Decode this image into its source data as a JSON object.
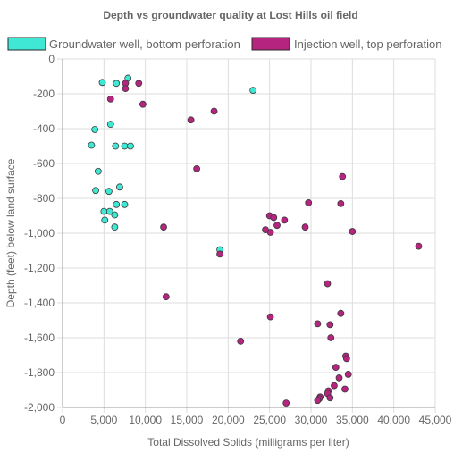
{
  "chart_data": {
    "type": "scatter",
    "title": "Depth vs groundwater quality at Lost Hills oil field",
    "xlabel": "Total Dissolved Solids (milligrams per liter)",
    "ylabel": "Depth (feet) below land surface",
    "xlim": [
      0,
      45000
    ],
    "ylim": [
      -2000,
      0
    ],
    "x_ticks": [
      "0",
      "5,000",
      "10,000",
      "15,000",
      "20,000",
      "25,000",
      "30,000",
      "35,000",
      "40,000",
      "45,000"
    ],
    "y_ticks": [
      "0",
      "-200",
      "-400",
      "-600",
      "-800",
      "-1,000",
      "-1,200",
      "-1,400",
      "-1,600",
      "-1,800",
      "-2,000"
    ],
    "grid": true,
    "legend_position": "top",
    "series": [
      {
        "name": "Groundwater well, bottom perforation",
        "color": "#3ee8d5",
        "points": [
          {
            "x": 7900,
            "y": -110
          },
          {
            "x": 4800,
            "y": -135
          },
          {
            "x": 6500,
            "y": -140
          },
          {
            "x": 23000,
            "y": -180
          },
          {
            "x": 5800,
            "y": -375
          },
          {
            "x": 3900,
            "y": -405
          },
          {
            "x": 3500,
            "y": -495
          },
          {
            "x": 6400,
            "y": -500
          },
          {
            "x": 7500,
            "y": -500
          },
          {
            "x": 8200,
            "y": -500
          },
          {
            "x": 4300,
            "y": -645
          },
          {
            "x": 6900,
            "y": -735
          },
          {
            "x": 4000,
            "y": -755
          },
          {
            "x": 5600,
            "y": -760
          },
          {
            "x": 6500,
            "y": -835
          },
          {
            "x": 7500,
            "y": -835
          },
          {
            "x": 5000,
            "y": -875
          },
          {
            "x": 5700,
            "y": -875
          },
          {
            "x": 6300,
            "y": -895
          },
          {
            "x": 5100,
            "y": -925
          },
          {
            "x": 6300,
            "y": -965
          },
          {
            "x": 19000,
            "y": -1095
          }
        ]
      },
      {
        "name": "Injection well, top perforation",
        "color": "#b5247e",
        "points": [
          {
            "x": 7600,
            "y": -140
          },
          {
            "x": 9200,
            "y": -140
          },
          {
            "x": 7600,
            "y": -170
          },
          {
            "x": 5800,
            "y": -230
          },
          {
            "x": 9700,
            "y": -260
          },
          {
            "x": 18300,
            "y": -300
          },
          {
            "x": 15500,
            "y": -350
          },
          {
            "x": 16200,
            "y": -630
          },
          {
            "x": 33800,
            "y": -675
          },
          {
            "x": 29700,
            "y": -825
          },
          {
            "x": 33600,
            "y": -830
          },
          {
            "x": 25000,
            "y": -900
          },
          {
            "x": 25500,
            "y": -910
          },
          {
            "x": 26800,
            "y": -925
          },
          {
            "x": 25900,
            "y": -955
          },
          {
            "x": 24500,
            "y": -980
          },
          {
            "x": 12200,
            "y": -965
          },
          {
            "x": 29300,
            "y": -965
          },
          {
            "x": 25100,
            "y": -995
          },
          {
            "x": 35000,
            "y": -990
          },
          {
            "x": 43000,
            "y": -1075
          },
          {
            "x": 19000,
            "y": -1120
          },
          {
            "x": 32000,
            "y": -1290
          },
          {
            "x": 12500,
            "y": -1365
          },
          {
            "x": 33600,
            "y": -1460
          },
          {
            "x": 25100,
            "y": -1480
          },
          {
            "x": 30800,
            "y": -1520
          },
          {
            "x": 32300,
            "y": -1525
          },
          {
            "x": 32400,
            "y": -1600
          },
          {
            "x": 21500,
            "y": -1620
          },
          {
            "x": 34200,
            "y": -1705
          },
          {
            "x": 34300,
            "y": -1720
          },
          {
            "x": 33000,
            "y": -1770
          },
          {
            "x": 34500,
            "y": -1810
          },
          {
            "x": 33400,
            "y": -1830
          },
          {
            "x": 32800,
            "y": -1875
          },
          {
            "x": 34100,
            "y": -1895
          },
          {
            "x": 32100,
            "y": -1905
          },
          {
            "x": 32000,
            "y": -1920
          },
          {
            "x": 31100,
            "y": -1940
          },
          {
            "x": 31000,
            "y": -1950
          },
          {
            "x": 32300,
            "y": -1945
          },
          {
            "x": 30800,
            "y": -1960
          },
          {
            "x": 27000,
            "y": -1975
          }
        ]
      }
    ]
  }
}
